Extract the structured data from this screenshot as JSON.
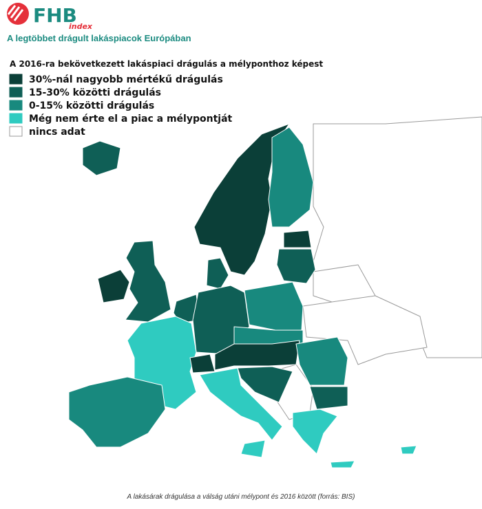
{
  "header": {
    "brand": "FHB",
    "brand_sub": "index",
    "subtitle": "A legtöbbet drágult lakáspiacok Európában"
  },
  "legend": {
    "title": "A 2016-ra bekövetkezett lakáspiaci drágulás a mélyponthoz képest",
    "items": [
      {
        "label": "30%-nál nagyobb mértékű drágulás",
        "color": "#0b3f38"
      },
      {
        "label": "15-30% közötti drágulás",
        "color": "#0f5f56"
      },
      {
        "label": "0-15% közötti drágulás",
        "color": "#18897e"
      },
      {
        "label": "Még nem érte el a piac a mélypontját",
        "color": "#2fcbc0"
      },
      {
        "label": "nincs adat",
        "color": "#ffffff"
      }
    ]
  },
  "caption": "A lakásárak drágulása a válság utáni mélypont és 2016 között (forrás: BIS)"
}
